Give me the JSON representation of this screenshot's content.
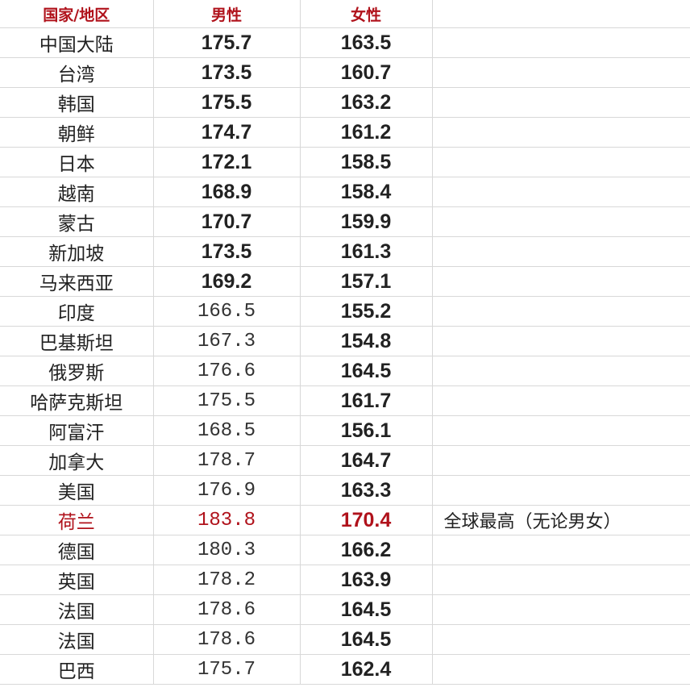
{
  "header": {
    "country": "国家/地区",
    "male": "男性",
    "female": "女性",
    "note": ""
  },
  "accent_color": "#b0121b",
  "rows": [
    {
      "country": "中国大陆",
      "male": "175.7",
      "female": "163.5",
      "note": "",
      "male_bold": true
    },
    {
      "country": "台湾",
      "male": "173.5",
      "female": "160.7",
      "note": "",
      "male_bold": true
    },
    {
      "country": "韩国",
      "male": "175.5",
      "female": "163.2",
      "note": "",
      "male_bold": true
    },
    {
      "country": "朝鲜",
      "male": "174.7",
      "female": "161.2",
      "note": "",
      "male_bold": true
    },
    {
      "country": "日本",
      "male": "172.1",
      "female": "158.5",
      "note": "",
      "male_bold": true
    },
    {
      "country": "越南",
      "male": "168.9",
      "female": "158.4",
      "note": "",
      "male_bold": true
    },
    {
      "country": "蒙古",
      "male": "170.7",
      "female": "159.9",
      "note": "",
      "male_bold": true
    },
    {
      "country": "新加坡",
      "male": "173.5",
      "female": "161.3",
      "note": "",
      "male_bold": true
    },
    {
      "country": "马来西亚",
      "male": "169.2",
      "female": "157.1",
      "note": "",
      "male_bold": true
    },
    {
      "country": "印度",
      "male": "166.5",
      "female": "155.2",
      "note": "",
      "male_bold": false
    },
    {
      "country": "巴基斯坦",
      "male": "167.3",
      "female": "154.8",
      "note": "",
      "male_bold": false
    },
    {
      "country": "俄罗斯",
      "male": "176.6",
      "female": "164.5",
      "note": "",
      "male_bold": false
    },
    {
      "country": "哈萨克斯坦",
      "male": "175.5",
      "female": "161.7",
      "note": "",
      "male_bold": false
    },
    {
      "country": "阿富汗",
      "male": "168.5",
      "female": "156.1",
      "note": "",
      "male_bold": false
    },
    {
      "country": "加拿大",
      "male": "178.7",
      "female": "164.7",
      "note": "",
      "male_bold": false
    },
    {
      "country": "美国",
      "male": "176.9",
      "female": "163.3",
      "note": "",
      "male_bold": false
    },
    {
      "country": "荷兰",
      "male": "183.8",
      "female": "170.4",
      "note": "全球最高（无论男女）",
      "male_bold": false,
      "highlight": true
    },
    {
      "country": "德国",
      "male": "180.3",
      "female": "166.2",
      "note": "",
      "male_bold": false
    },
    {
      "country": "英国",
      "male": "178.2",
      "female": "163.9",
      "note": "",
      "male_bold": false
    },
    {
      "country": "法国",
      "male": "178.6",
      "female": "164.5",
      "note": "",
      "male_bold": false
    },
    {
      "country": "法国",
      "male": "178.6",
      "female": "164.5",
      "note": "",
      "male_bold": false
    },
    {
      "country": "巴西",
      "male": "175.7",
      "female": "162.4",
      "note": "",
      "male_bold": false
    }
  ]
}
